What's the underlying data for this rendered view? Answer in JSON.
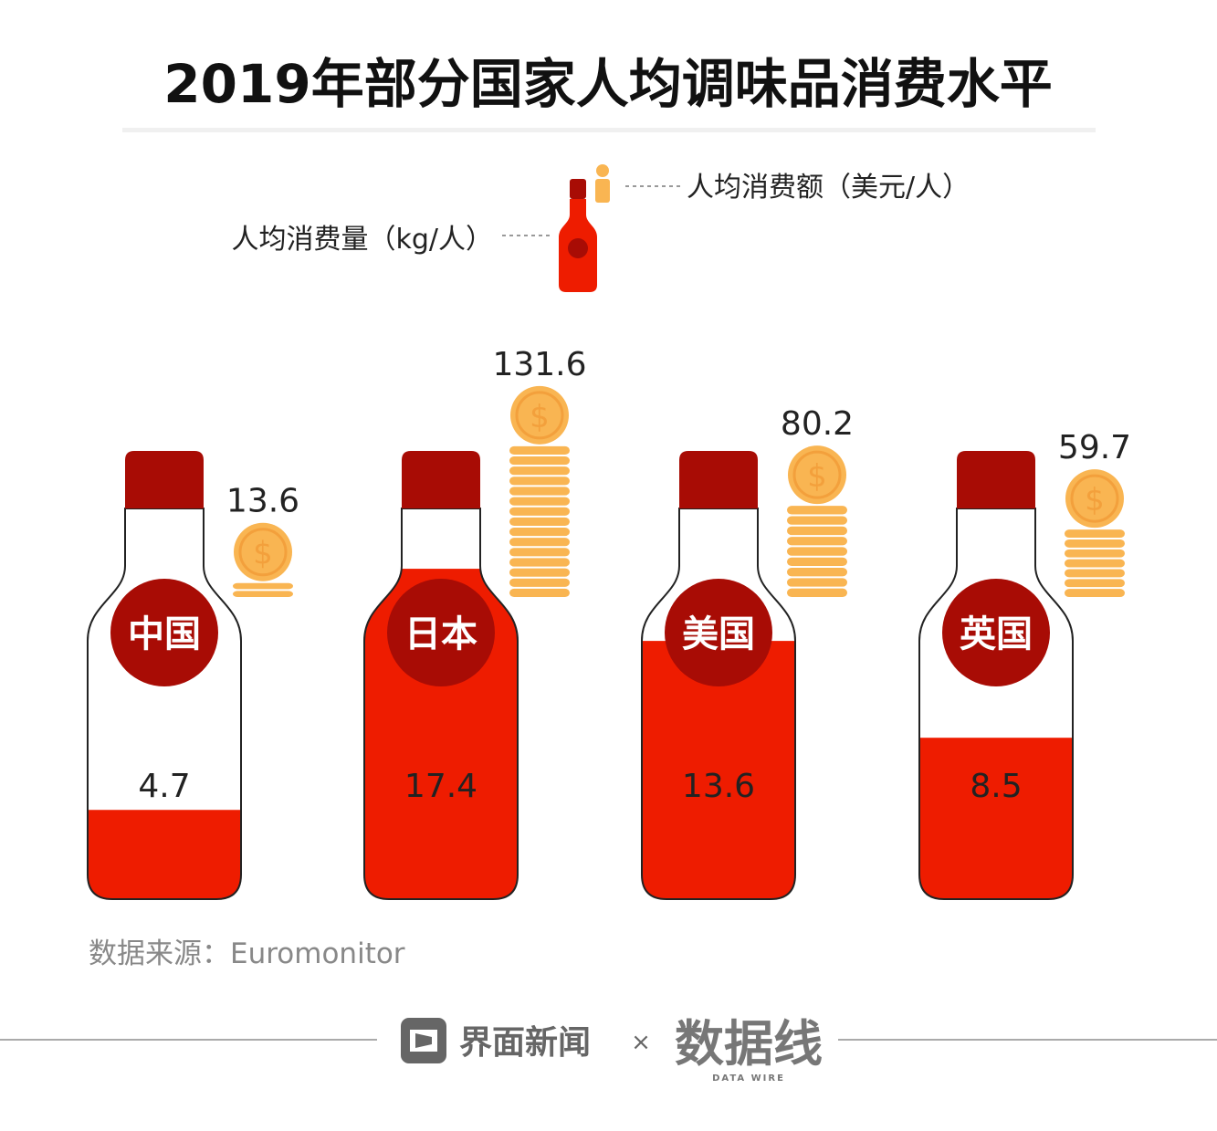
{
  "chart_data": {
    "type": "pictorial-bar",
    "title": "2019年部分国家人均调味品消费水平",
    "legend": {
      "volume_label": "人均消费量（kg/人）",
      "spend_label": "人均消费额（美元/人）"
    },
    "categories": [
      "中国",
      "日本",
      "美国",
      "英国"
    ],
    "series": [
      {
        "name": "人均消费量（kg/人）",
        "values": [
          4.7,
          17.4,
          13.6,
          8.5
        ]
      },
      {
        "name": "人均消费额（美元/人）",
        "values": [
          13.6,
          131.6,
          80.2,
          59.7
        ]
      }
    ],
    "colors": {
      "fill": "#ee1c00",
      "cap": "#a80c05",
      "coin": "#f9b552",
      "coin_ring": "#f3a03c"
    }
  },
  "source": "数据来源：Euromonitor",
  "footer": {
    "brand1": "界面新闻",
    "separator": "×",
    "brand2": "数据线",
    "brand2_sub": "DATA WIRE"
  }
}
